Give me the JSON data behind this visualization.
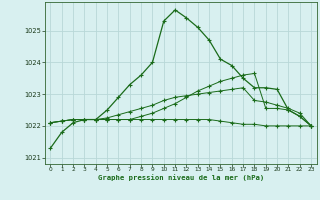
{
  "bg_color": "#d8f0f0",
  "plot_bg_color": "#d8f0f0",
  "grid_color": "#b8d8d8",
  "line_color": "#1a6b1a",
  "xlabel": "Graphe pression niveau de la mer (hPa)",
  "xlim": [
    -0.5,
    23.5
  ],
  "ylim": [
    1020.8,
    1025.9
  ],
  "yticks": [
    1021,
    1022,
    1023,
    1024,
    1025
  ],
  "xticks": [
    0,
    1,
    2,
    3,
    4,
    5,
    6,
    7,
    8,
    9,
    10,
    11,
    12,
    13,
    14,
    15,
    16,
    17,
    18,
    19,
    20,
    21,
    22,
    23
  ],
  "series": [
    [
      1021.3,
      1021.8,
      1022.1,
      1022.2,
      1022.2,
      1022.5,
      1022.9,
      1023.3,
      1023.6,
      1024.0,
      1025.3,
      1025.65,
      1025.4,
      1025.1,
      1024.7,
      1024.1,
      1023.9,
      1023.5,
      1023.2,
      1023.2,
      1023.15,
      1022.5,
      1022.3,
      1022.0
    ],
    [
      1022.1,
      1022.15,
      1022.2,
      1022.2,
      1022.2,
      1022.2,
      1022.2,
      1022.2,
      1022.3,
      1022.4,
      1022.55,
      1022.7,
      1022.9,
      1023.1,
      1023.25,
      1023.4,
      1023.5,
      1023.6,
      1023.65,
      1022.55,
      1022.55,
      1022.5,
      1022.3,
      1022.0
    ],
    [
      1022.1,
      1022.15,
      1022.2,
      1022.2,
      1022.2,
      1022.2,
      1022.2,
      1022.2,
      1022.2,
      1022.2,
      1022.2,
      1022.2,
      1022.2,
      1022.2,
      1022.2,
      1022.15,
      1022.1,
      1022.05,
      1022.05,
      1022.0,
      1022.0,
      1022.0,
      1022.0,
      1022.0
    ],
    [
      1022.1,
      1022.15,
      1022.2,
      1022.2,
      1022.2,
      1022.25,
      1022.35,
      1022.45,
      1022.55,
      1022.65,
      1022.8,
      1022.9,
      1022.95,
      1023.0,
      1023.05,
      1023.1,
      1023.15,
      1023.2,
      1022.8,
      1022.75,
      1022.65,
      1022.55,
      1022.4,
      1022.0
    ]
  ]
}
